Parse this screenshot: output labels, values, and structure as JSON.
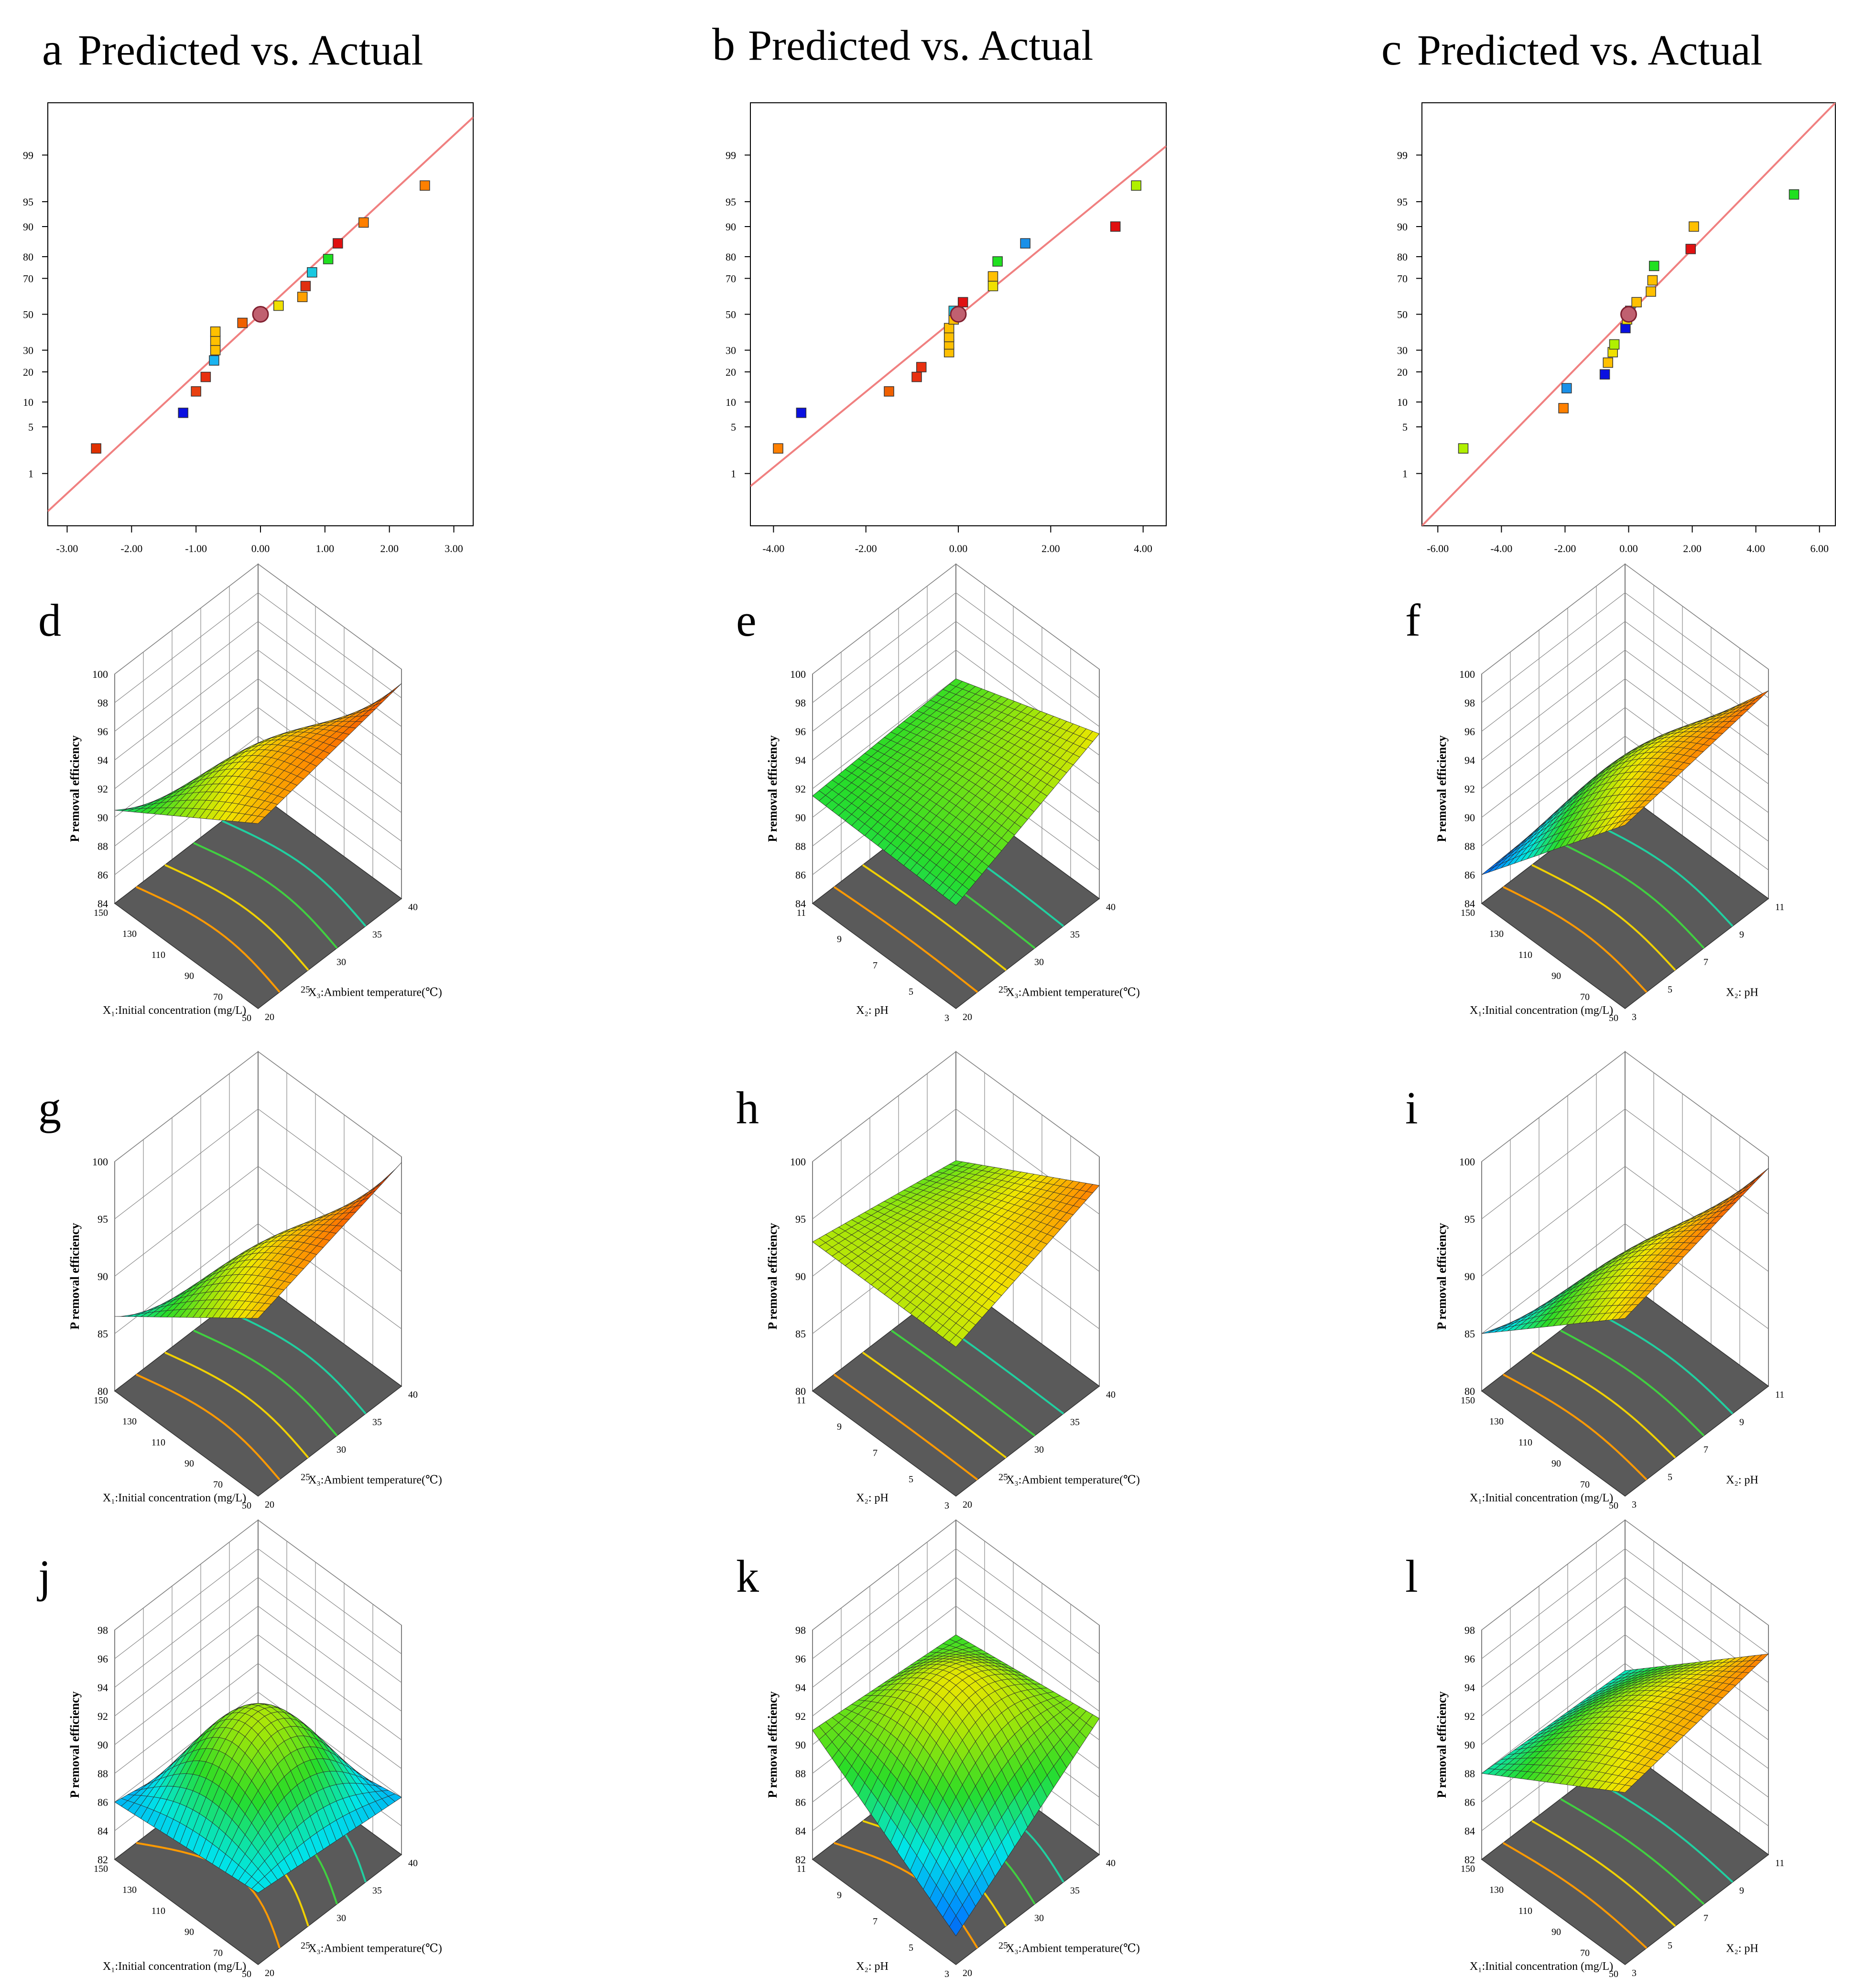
{
  "chart_data": [
    {
      "id": "a",
      "type": "scatter",
      "panel_letter": "a",
      "title": "Predicted vs. Actual",
      "xlim": [
        -3.3,
        3.3
      ],
      "x_ticks": [
        "-3.00",
        "-2.00",
        "-1.00",
        "0.00",
        "1.00",
        "2.00",
        "3.00"
      ],
      "x_tick_values": [
        -3,
        -2,
        -1,
        0,
        1,
        2,
        3
      ],
      "y_ticks": [
        "1",
        "5",
        "10",
        "20",
        "30",
        "50",
        "70",
        "80",
        "90",
        "95",
        "99"
      ],
      "y_tick_values": [
        1,
        5,
        10,
        20,
        30,
        50,
        70,
        80,
        90,
        95,
        99
      ],
      "line": {
        "x": [
          -3.3,
          3.3
        ],
        "y": [
          0.2,
          99.8
        ],
        "color": "#f08080"
      },
      "points": [
        {
          "x": -2.55,
          "y": 2.5,
          "color": "#e03000"
        },
        {
          "x": -1.2,
          "y": 7.5,
          "color": "#0a10e0"
        },
        {
          "x": -1.0,
          "y": 13,
          "color": "#e84010"
        },
        {
          "x": -0.85,
          "y": 18,
          "color": "#e83010"
        },
        {
          "x": -0.72,
          "y": 25,
          "color": "#1ab4f0"
        },
        {
          "x": -0.7,
          "y": 30,
          "color": "#ffc000"
        },
        {
          "x": -0.7,
          "y": 35,
          "color": "#ffc000"
        },
        {
          "x": -0.7,
          "y": 40,
          "color": "#ffc000"
        },
        {
          "x": -0.28,
          "y": 45,
          "color": "#f06000"
        },
        {
          "x": 0.28,
          "y": 55,
          "color": "#f0e000"
        },
        {
          "x": 0.65,
          "y": 60,
          "color": "#ffa000"
        },
        {
          "x": 0.7,
          "y": 66,
          "color": "#e03010"
        },
        {
          "x": 0.8,
          "y": 73,
          "color": "#18c8e0"
        },
        {
          "x": 1.05,
          "y": 79,
          "color": "#20e020"
        },
        {
          "x": 1.2,
          "y": 85,
          "color": "#e01010"
        },
        {
          "x": 1.6,
          "y": 91,
          "color": "#ff8000"
        },
        {
          "x": 2.55,
          "y": 97,
          "color": "#ff8000"
        }
      ],
      "center_point": {
        "x": 0.0,
        "y": 50
      }
    },
    {
      "id": "b",
      "type": "scatter",
      "panel_letter": "b",
      "title": "Predicted vs. Actual",
      "xlim": [
        -4.5,
        4.5
      ],
      "x_ticks": [
        "-4.00",
        "-2.00",
        "0.00",
        "2.00",
        "4.00"
      ],
      "x_tick_values": [
        -4,
        -2,
        0,
        2,
        4
      ],
      "y_ticks": [
        "1",
        "5",
        "10",
        "20",
        "30",
        "50",
        "70",
        "80",
        "90",
        "95",
        "99"
      ],
      "y_tick_values": [
        1,
        5,
        10,
        20,
        30,
        50,
        70,
        80,
        90,
        95,
        99
      ],
      "line": {
        "x": [
          -4.5,
          4.5
        ],
        "y": [
          0.6,
          99.3
        ],
        "color": "#f08080"
      },
      "points": [
        {
          "x": -3.9,
          "y": 2.5,
          "color": "#ff8000"
        },
        {
          "x": -3.4,
          "y": 7.5,
          "color": "#0a10e0"
        },
        {
          "x": -1.5,
          "y": 13,
          "color": "#f06000"
        },
        {
          "x": -0.9,
          "y": 18,
          "color": "#e83010"
        },
        {
          "x": -0.8,
          "y": 22,
          "color": "#e83010"
        },
        {
          "x": -0.2,
          "y": 29,
          "color": "#ffc000"
        },
        {
          "x": -0.2,
          "y": 33,
          "color": "#ffc000"
        },
        {
          "x": -0.2,
          "y": 37,
          "color": "#ffc000"
        },
        {
          "x": -0.2,
          "y": 42,
          "color": "#ffc000"
        },
        {
          "x": -0.1,
          "y": 47,
          "color": "#ffc000"
        },
        {
          "x": -0.1,
          "y": 52,
          "color": "#18c8e0"
        },
        {
          "x": 0.1,
          "y": 57,
          "color": "#e01010"
        },
        {
          "x": 0.75,
          "y": 66,
          "color": "#f0e000"
        },
        {
          "x": 0.75,
          "y": 71,
          "color": "#ffc000"
        },
        {
          "x": 0.85,
          "y": 78,
          "color": "#20e020"
        },
        {
          "x": 1.45,
          "y": 85,
          "color": "#1a90e8"
        },
        {
          "x": 3.4,
          "y": 90,
          "color": "#e01010"
        },
        {
          "x": 3.85,
          "y": 97,
          "color": "#b0f000"
        }
      ],
      "center_point": {
        "x": 0.0,
        "y": 50
      }
    },
    {
      "id": "c",
      "type": "scatter",
      "panel_letter": "c",
      "title": "Predicted vs. Actual",
      "xlim": [
        -6.5,
        6.5
      ],
      "x_ticks": [
        "-6.00",
        "-4.00",
        "-2.00",
        "0.00",
        "2.00",
        "4.00",
        "6.00"
      ],
      "x_tick_values": [
        -6,
        -4,
        -2,
        0,
        2,
        4,
        6
      ],
      "y_ticks": [
        "1",
        "5",
        "10",
        "20",
        "30",
        "50",
        "70",
        "80",
        "90",
        "95",
        "99"
      ],
      "y_tick_values": [
        1,
        5,
        10,
        20,
        30,
        50,
        70,
        80,
        90,
        95,
        99
      ],
      "line": {
        "x": [
          -6.5,
          6.5
        ],
        "y": [
          0.1,
          99.9
        ],
        "color": "#f08080"
      },
      "points": [
        {
          "x": -5.2,
          "y": 2.5,
          "color": "#b0f000"
        },
        {
          "x": -2.05,
          "y": 8.5,
          "color": "#ff8000"
        },
        {
          "x": -1.95,
          "y": 14,
          "color": "#1a90e8"
        },
        {
          "x": -0.75,
          "y": 19,
          "color": "#0a10e0"
        },
        {
          "x": -0.65,
          "y": 24,
          "color": "#ffc000"
        },
        {
          "x": -0.5,
          "y": 29,
          "color": "#f0e000"
        },
        {
          "x": -0.45,
          "y": 33,
          "color": "#b0f000"
        },
        {
          "x": -0.1,
          "y": 42,
          "color": "#0a10e0"
        },
        {
          "x": -0.05,
          "y": 47,
          "color": "#f0e000"
        },
        {
          "x": 0.05,
          "y": 52,
          "color": "#18c8e0"
        },
        {
          "x": 0.25,
          "y": 57,
          "color": "#ffc000"
        },
        {
          "x": 0.7,
          "y": 63,
          "color": "#ffc000"
        },
        {
          "x": 0.75,
          "y": 69,
          "color": "#ffc000"
        },
        {
          "x": 0.8,
          "y": 76,
          "color": "#20e020"
        },
        {
          "x": 1.95,
          "y": 83,
          "color": "#e01010"
        },
        {
          "x": 2.05,
          "y": 90,
          "color": "#ffc000"
        },
        {
          "x": 5.2,
          "y": 96,
          "color": "#20e020"
        }
      ],
      "center_point": {
        "x": 0.0,
        "y": 50
      }
    },
    {
      "id": "d",
      "type": "surface",
      "panel_letter": "d",
      "zlabel": "P removal efficiency",
      "z_ticks": [
        "84",
        "86",
        "88",
        "90",
        "92",
        "94",
        "96",
        "98",
        "100"
      ],
      "zlim": [
        84,
        100
      ],
      "x_axis_label": "X₁:Initial concentration (mg/L)",
      "x_ticks": [
        "50",
        "70",
        "90",
        "110",
        "130",
        "150"
      ],
      "y_axis_label": "X₃:Ambient temperature(℃)",
      "y_ticks": [
        "20",
        "25",
        "30",
        "35",
        "40"
      ],
      "corner_z": [
        90.5,
        96.9,
        99.0,
        84.0
      ],
      "ridge": 0.6
    },
    {
      "id": "e",
      "type": "surface",
      "panel_letter": "e",
      "zlabel": "P removal efficiency",
      "z_ticks": [
        "84",
        "86",
        "88",
        "90",
        "92",
        "94",
        "96",
        "98",
        "100"
      ],
      "zlim": [
        84,
        100
      ],
      "x_axis_label": "X₂: pH",
      "x_ticks": [
        "3",
        "5",
        "7",
        "9",
        "11"
      ],
      "y_axis_label": "X₃:Ambient temperature(℃)",
      "y_ticks": [
        "20",
        "25",
        "30",
        "35",
        "40"
      ],
      "corner_z": [
        91.5,
        91.2,
        95.5,
        92.0
      ],
      "ridge": 0.1
    },
    {
      "id": "f",
      "type": "surface",
      "panel_letter": "f",
      "zlabel": "P removal efficiency",
      "z_ticks": [
        "84",
        "86",
        "88",
        "90",
        "92",
        "94",
        "96",
        "98",
        "100"
      ],
      "zlim": [
        84,
        100
      ],
      "x_axis_label": "X₁:Initial concentration (mg/L)",
      "x_ticks": [
        "50",
        "70",
        "90",
        "110",
        "130",
        "150"
      ],
      "y_axis_label": "X₂: pH",
      "y_ticks": [
        "3",
        "5",
        "7",
        "9",
        "11"
      ],
      "corner_z": [
        86.0,
        96.8,
        98.5,
        86.5
      ],
      "ridge": 0.5
    },
    {
      "id": "g",
      "type": "surface",
      "panel_letter": "g",
      "zlabel": "P removal efficiency",
      "z_ticks": [
        "80",
        "85",
        "90",
        "95",
        "100"
      ],
      "zlim": [
        80,
        100
      ],
      "x_axis_label": "X₁:Initial concentration (mg/L)",
      "x_ticks": [
        "50",
        "70",
        "90",
        "110",
        "130",
        "150"
      ],
      "y_axis_label": "X₃:Ambient temperature(℃)",
      "y_ticks": [
        "20",
        "25",
        "30",
        "35",
        "40"
      ],
      "corner_z": [
        86.5,
        95.5,
        99.5,
        77.0
      ],
      "ridge": 0.6
    },
    {
      "id": "h",
      "type": "surface",
      "panel_letter": "h",
      "zlabel": "P removal efficiency",
      "z_ticks": [
        "80",
        "85",
        "90",
        "95",
        "100"
      ],
      "zlim": [
        80,
        100
      ],
      "x_axis_label": "X₂: pH",
      "x_ticks": [
        "3",
        "5",
        "7",
        "9",
        "11"
      ],
      "y_axis_label": "X₃:Ambient temperature(℃)",
      "y_ticks": [
        "20",
        "25",
        "30",
        "35",
        "40"
      ],
      "corner_z": [
        93.0,
        93.0,
        97.5,
        90.5
      ],
      "ridge": 0.05
    },
    {
      "id": "i",
      "type": "surface",
      "panel_letter": "i",
      "zlabel": "P removal efficiency",
      "z_ticks": [
        "80",
        "85",
        "90",
        "95",
        "100"
      ],
      "zlim": [
        80,
        100
      ],
      "x_axis_label": "X₁:Initial concentration (mg/L)",
      "x_ticks": [
        "50",
        "70",
        "90",
        "110",
        "130",
        "150"
      ],
      "y_axis_label": "X₂: pH",
      "y_ticks": [
        "3",
        "5",
        "7",
        "9",
        "11"
      ],
      "corner_z": [
        85.0,
        95.5,
        99.0,
        80.0
      ],
      "ridge": 0.4
    },
    {
      "id": "j",
      "type": "surface",
      "panel_letter": "j",
      "zlabel": "P removal efficiency",
      "z_ticks": [
        "82",
        "84",
        "86",
        "88",
        "90",
        "92",
        "94",
        "96",
        "98"
      ],
      "zlim": [
        82,
        98
      ],
      "x_axis_label": "X₁:Initial concentration (mg/L)",
      "x_ticks": [
        "50",
        "70",
        "90",
        "110",
        "130",
        "150"
      ],
      "y_axis_label": "X₃:Ambient temperature(℃)",
      "y_ticks": [
        "20",
        "25",
        "30",
        "35",
        "40"
      ],
      "corner_z": [
        86.0,
        87.0,
        86.0,
        84.0
      ],
      "ridge": 1.6
    },
    {
      "id": "k",
      "type": "surface",
      "panel_letter": "k",
      "zlabel": "P removal efficiency",
      "z_ticks": [
        "82",
        "84",
        "86",
        "88",
        "90",
        "92",
        "94",
        "96",
        "98"
      ],
      "zlim": [
        82,
        98
      ],
      "x_axis_label": "X₂: pH",
      "x_ticks": [
        "3",
        "5",
        "7",
        "9",
        "11"
      ],
      "y_axis_label": "X₃:Ambient temperature(℃)",
      "y_ticks": [
        "20",
        "25",
        "30",
        "35",
        "40"
      ],
      "corner_z": [
        91.0,
        84.0,
        91.5,
        90.0
      ],
      "ridge": 1.0
    },
    {
      "id": "l",
      "type": "surface",
      "panel_letter": "l",
      "zlabel": "P removal efficiency",
      "z_ticks": [
        "82",
        "84",
        "86",
        "88",
        "90",
        "92",
        "94",
        "96",
        "98"
      ],
      "zlim": [
        82,
        98
      ],
      "x_axis_label": "X₁:Initial concentration (mg/L)",
      "x_ticks": [
        "50",
        "70",
        "90",
        "110",
        "130",
        "150"
      ],
      "y_axis_label": "X₂: pH",
      "y_ticks": [
        "3",
        "5",
        "7",
        "9",
        "11"
      ],
      "corner_z": [
        88.0,
        94.0,
        96.0,
        87.5
      ],
      "ridge": 0.3
    }
  ]
}
